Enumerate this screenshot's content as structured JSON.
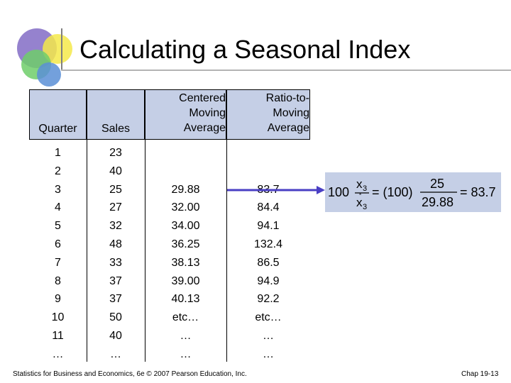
{
  "title": "Calculating a Seasonal Index",
  "table": {
    "headers": {
      "quarter": "Quarter",
      "sales": "Sales",
      "cma": [
        "Centered",
        "Moving",
        "Average"
      ],
      "ratio": [
        "Ratio-to-",
        "Moving",
        "Average"
      ]
    },
    "quarter": [
      "1",
      "2",
      "3",
      "4",
      "5",
      "6",
      "7",
      "8",
      "9",
      "10",
      "11",
      "…"
    ],
    "sales": [
      "23",
      "40",
      "25",
      "27",
      "32",
      "48",
      "33",
      "37",
      "37",
      "50",
      "40",
      "…"
    ],
    "cma": [
      "",
      "",
      "29.88",
      "32.00",
      "34.00",
      "36.25",
      "38.13",
      "39.00",
      "40.13",
      "etc…",
      "…",
      "…"
    ],
    "ratio": [
      "",
      "",
      "83.7",
      "84.4",
      "94.1",
      "132.4",
      "86.5",
      "94.9",
      "92.2",
      "etc…",
      "…",
      "…"
    ]
  },
  "formula": {
    "left": "100",
    "x_num": "x",
    "x_num_sub": "3",
    "x_den": "x",
    "x_den_sub": "3",
    "star": "*",
    "eq1": "= (100)",
    "num": "25",
    "den": "29.88",
    "eq2": "= 83.7"
  },
  "colors": {
    "header_fill": "#c5cfe6",
    "arrow": "#4a3fc4"
  },
  "footer": {
    "left": "Statistics for Business and Economics, 6e © 2007 Pearson Education, Inc.",
    "right": "Chap 19-13"
  }
}
